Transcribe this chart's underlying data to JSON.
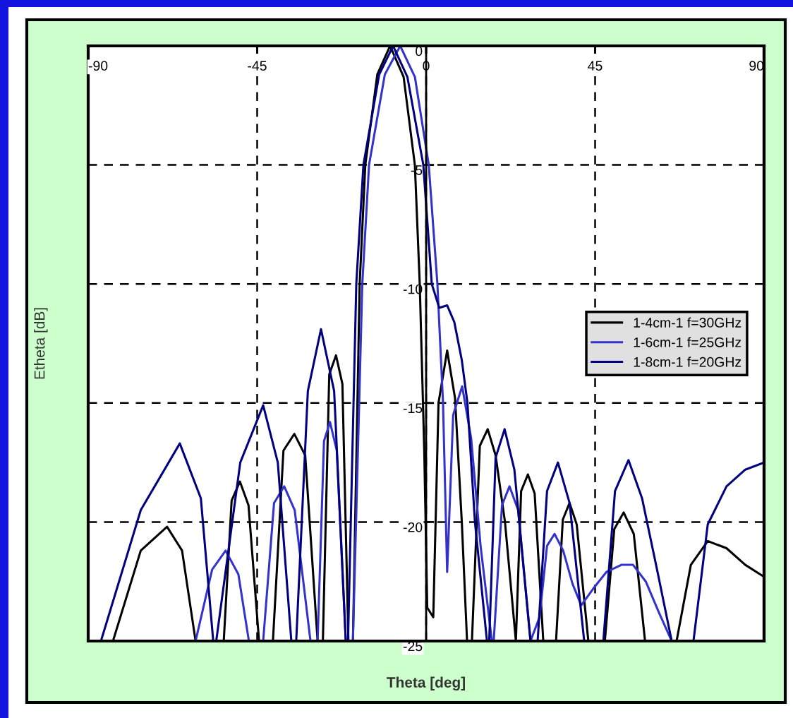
{
  "chart_data": {
    "type": "line",
    "xlabel": "Theta [deg]",
    "ylabel": "Etheta [dB]",
    "xlim": [
      -90,
      90
    ],
    "ylim": [
      -25,
      0
    ],
    "xticks": [
      -90,
      -45,
      0,
      45,
      90
    ],
    "yticks": [
      0,
      -5,
      -10,
      -15,
      -20,
      -25
    ],
    "grid": true,
    "legend": "right",
    "line_style": "solid",
    "series": [
      {
        "name": "1-4cm-1 f=30GHz",
        "color": "#000000",
        "x": [
          -83.4,
          -76,
          -69,
          -65,
          -61.4,
          -53.9,
          -51.8,
          -49.6,
          -47.3,
          -44.5,
          -40.8,
          -38,
          -35.1,
          -32.2,
          -28.9,
          -27.5,
          -25.8,
          -24,
          -22.3,
          -20.7,
          -19.5,
          -17.7,
          -16.2,
          -13,
          -9.6,
          -6,
          -3,
          -1.7,
          -0.5,
          0.3,
          1.9,
          3.3,
          5.6,
          7.7,
          9.5,
          10.9,
          12.2,
          14.3,
          16.4,
          18.5,
          21,
          23.9,
          25.3,
          27.1,
          28.9,
          31.2,
          34.6,
          36.4,
          38.2,
          40.1,
          43.2,
          47.6,
          50.1,
          52.6,
          55.3,
          58.3,
          66.7,
          70.5,
          75,
          80,
          85,
          90
        ],
        "values": [
          -25,
          -21.2,
          -20.2,
          -21.2,
          -25,
          -25,
          -19.1,
          -18.3,
          -19.3,
          -25,
          -25,
          -17,
          -16.3,
          -17.2,
          -25,
          -25,
          -13.8,
          -13,
          -14.2,
          -25,
          -25,
          -10,
          -5,
          -1.2,
          0,
          -1.3,
          -5,
          -10,
          -17,
          -23.6,
          -24,
          -15,
          -12.8,
          -14.8,
          -20,
          -25,
          -25,
          -16.8,
          -16.1,
          -17.2,
          -20,
          -25,
          -18.7,
          -18,
          -18.8,
          -25,
          -25,
          -19.9,
          -19.2,
          -20.1,
          -25,
          -25,
          -20.3,
          -19.6,
          -20.5,
          -25,
          -25,
          -21.8,
          -20.8,
          -21.1,
          -21.8,
          -22.3
        ]
      },
      {
        "name": "1-6cm-1 f=25GHz",
        "color": "#3333cc",
        "x": [
          -61.4,
          -57,
          -53.4,
          -50,
          -47.2,
          -43.4,
          -40.5,
          -37.8,
          -35,
          -30.8,
          -28.9,
          -27.2,
          -25.6,
          -23.8,
          -21.4,
          -19.5,
          -17,
          -15.2,
          -11,
          -6.9,
          -3,
          0.7,
          3,
          4.5,
          5.6,
          7.2,
          9.6,
          12,
          14.5,
          17.5,
          18,
          20.2,
          22.2,
          24.5,
          27.8,
          30.2,
          32.2,
          34.2,
          36.5,
          39,
          41.3,
          44.5,
          48,
          52,
          55.1,
          58.5,
          62,
          65.4
        ],
        "values": [
          -25,
          -22,
          -21.2,
          -22.2,
          -25,
          -25,
          -19.2,
          -18.5,
          -19.5,
          -25,
          -25,
          -16.6,
          -15.8,
          -17,
          -25,
          -25,
          -10,
          -5,
          -1.2,
          0,
          -1.3,
          -5,
          -10,
          -15,
          -22.1,
          -15.5,
          -14.3,
          -16.5,
          -21,
          -25,
          -25,
          -19.3,
          -18.5,
          -19.5,
          -25,
          -24,
          -21,
          -20.5,
          -21.2,
          -22.6,
          -23.5,
          -22.8,
          -22.1,
          -21.8,
          -21.8,
          -22.5,
          -23.8,
          -25
        ]
      },
      {
        "name": "1-8cm-1 f=20GHz",
        "color": "#000080",
        "x": [
          -86.6,
          -76,
          -65.6,
          -60,
          -56.7,
          -55.9,
          -49.5,
          -43.4,
          -39.5,
          -35.9,
          -34.6,
          -31.5,
          -28,
          -24.5,
          -21.4,
          -20.8,
          -18.6,
          -16.7,
          -12.5,
          -8.8,
          -5,
          -0.75,
          1.5,
          3.5,
          5.6,
          7.5,
          9.5,
          11,
          13,
          16.2,
          16.8,
          18.5,
          20.9,
          23.5,
          27.8,
          29.7,
          32.2,
          35.1,
          38.2,
          42.1,
          47.2,
          50.3,
          53.9,
          57.5,
          61.5,
          65.4,
          71.2,
          75,
          80,
          85,
          90
        ],
        "values": [
          -25,
          -19.5,
          -16.7,
          -19,
          -25,
          -25,
          -17.5,
          -15.1,
          -17.5,
          -25,
          -25,
          -14.5,
          -11.9,
          -14.5,
          -25,
          -25,
          -10,
          -5,
          -1.2,
          0,
          -1.3,
          -5,
          -10,
          -11,
          -10.9,
          -11.6,
          -13.2,
          -15,
          -20,
          -25,
          -25,
          -17.3,
          -16.1,
          -17.8,
          -25,
          -25,
          -18.7,
          -17.5,
          -19.2,
          -25,
          -25,
          -18.7,
          -17.4,
          -19,
          -22,
          -25,
          -25,
          -20.1,
          -18.5,
          -17.8,
          -17.5
        ]
      }
    ]
  }
}
